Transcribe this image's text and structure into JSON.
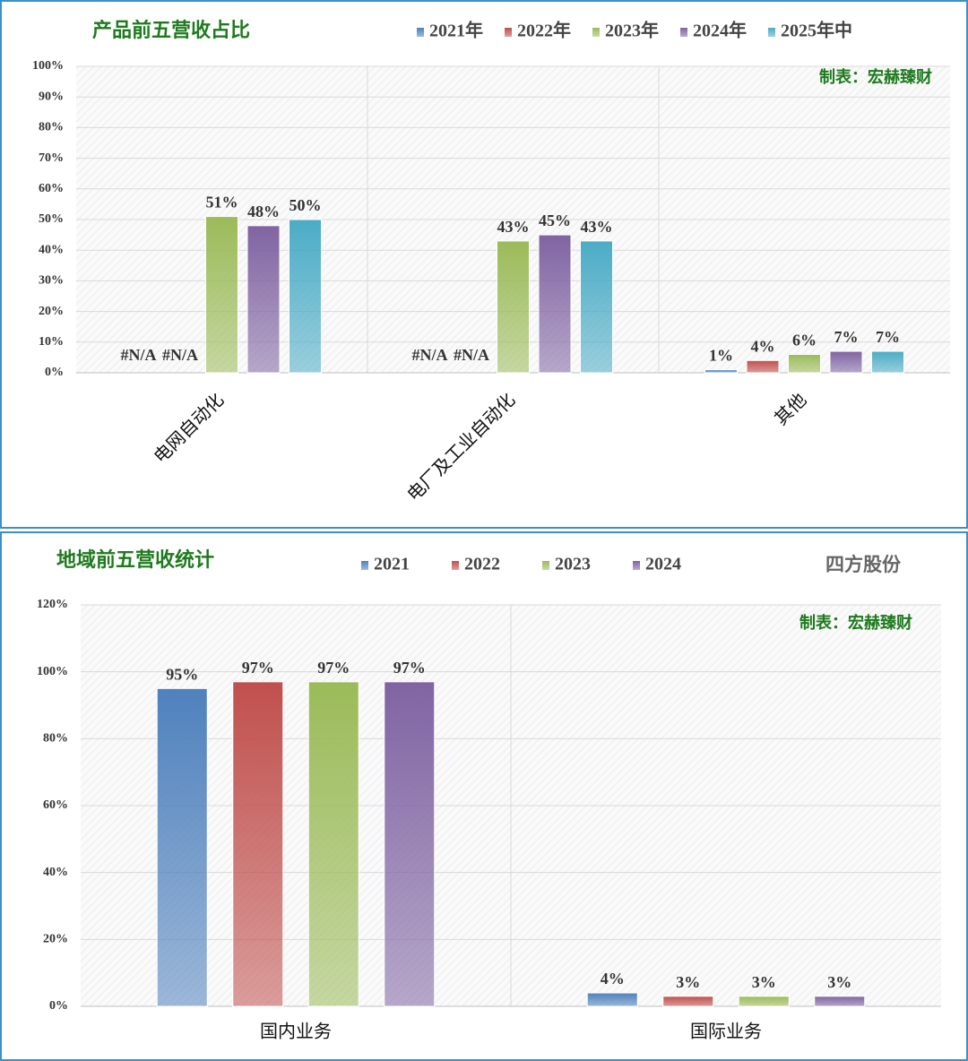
{
  "chart_data": [
    {
      "type": "bar",
      "title": "产品前五营收占比",
      "annotations": [
        "制表：宏赫臻财"
      ],
      "categories": [
        "电网自动化",
        "电厂及工业自动化",
        "其他"
      ],
      "series": [
        {
          "name": "2021年",
          "color": "#4f81bd",
          "values": [
            null,
            null,
            1
          ],
          "value_labels": [
            "#N/A",
            "#N/A",
            "1%"
          ]
        },
        {
          "name": "2022年",
          "color": "#c0504d",
          "values": [
            null,
            null,
            4
          ],
          "value_labels": [
            "#N/A",
            "#N/A",
            "4%"
          ]
        },
        {
          "name": "2023年",
          "color": "#9bbb59",
          "values": [
            51,
            43,
            6
          ],
          "value_labels": [
            "51%",
            "43%",
            "6%"
          ]
        },
        {
          "name": "2024年",
          "color": "#8064a2",
          "values": [
            48,
            45,
            7
          ],
          "value_labels": [
            "48%",
            "45%",
            "7%"
          ]
        },
        {
          "name": "2025年中",
          "color": "#4bacc6",
          "values": [
            50,
            43,
            7
          ],
          "value_labels": [
            "50%",
            "43%",
            "7%"
          ]
        }
      ],
      "ylim": [
        0,
        100
      ],
      "yticks": [
        {
          "value": 0,
          "label": "0%"
        },
        {
          "value": 10,
          "label": "10%"
        },
        {
          "value": 20,
          "label": "20%"
        },
        {
          "value": 30,
          "label": "30%"
        },
        {
          "value": 40,
          "label": "40%"
        },
        {
          "value": 50,
          "label": "50%"
        },
        {
          "value": 60,
          "label": "60%"
        },
        {
          "value": 70,
          "label": "70%"
        },
        {
          "value": 80,
          "label": "80%"
        },
        {
          "value": 90,
          "label": "90%"
        },
        {
          "value": 100,
          "label": "100%"
        }
      ],
      "grid": true
    },
    {
      "type": "bar",
      "title": "地域前五营收统计",
      "annotations": [
        "制表：宏赫臻财",
        "四方股份"
      ],
      "categories": [
        "国内业务",
        "国际业务"
      ],
      "series": [
        {
          "name": "2021",
          "color": "#4f81bd",
          "values": [
            95,
            4
          ],
          "value_labels": [
            "95%",
            "4%"
          ]
        },
        {
          "name": "2022",
          "color": "#c0504d",
          "values": [
            97,
            3
          ],
          "value_labels": [
            "97%",
            "3%"
          ]
        },
        {
          "name": "2023",
          "color": "#9bbb59",
          "values": [
            97,
            3
          ],
          "value_labels": [
            "97%",
            "3%"
          ]
        },
        {
          "name": "2024",
          "color": "#8064a2",
          "values": [
            97,
            3
          ],
          "value_labels": [
            "97%",
            "3%"
          ]
        }
      ],
      "ylim": [
        0,
        120
      ],
      "yticks": [
        {
          "value": 0,
          "label": "0%"
        },
        {
          "value": 20,
          "label": "20%"
        },
        {
          "value": 40,
          "label": "40%"
        },
        {
          "value": 60,
          "label": "60%"
        },
        {
          "value": 80,
          "label": "80%"
        },
        {
          "value": 100,
          "label": "100%"
        },
        {
          "value": 120,
          "label": "120%"
        }
      ],
      "grid": true
    }
  ]
}
